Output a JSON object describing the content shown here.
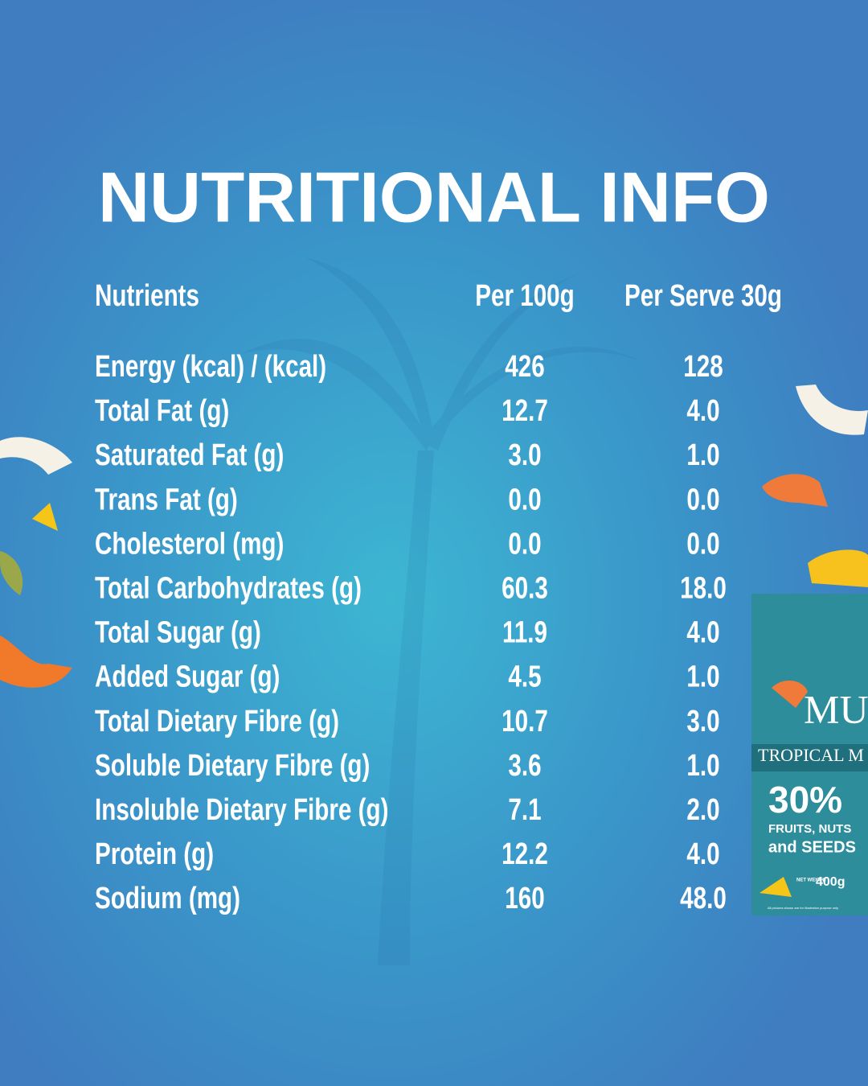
{
  "title": "NUTRITIONAL INFO",
  "table": {
    "header": [
      "Nutrients",
      "Per 100g",
      "Per Serve 30g"
    ],
    "rows": [
      [
        "Energy (kcal) / (kcal)",
        "426",
        "128"
      ],
      [
        "Total Fat (g)",
        "12.7",
        "4.0"
      ],
      [
        "Saturated Fat (g)",
        "3.0",
        "1.0"
      ],
      [
        "Trans Fat (g)",
        "0.0",
        "0.0"
      ],
      [
        "Cholesterol (mg)",
        "0.0",
        "0.0"
      ],
      [
        "Total Carbohydrates (g)",
        "60.3",
        "18.0"
      ],
      [
        "Total Sugar (g)",
        "11.9",
        "4.0"
      ],
      [
        "Added Sugar (g)",
        "4.5",
        "1.0"
      ],
      [
        "Total Dietary Fibre (g)",
        "10.7",
        "3.0"
      ],
      [
        "Soluble Dietary Fibre (g)",
        "3.6",
        "1.0"
      ],
      [
        "Insoluble Dietary Fibre (g)",
        "7.1",
        "2.0"
      ],
      [
        "Protein (g)",
        "12.2",
        "4.0"
      ],
      [
        "Sodium (mg)",
        "160",
        "48.0"
      ]
    ]
  },
  "package": {
    "brand": "MU",
    "variant": "TROPICAL M",
    "percent": "30%",
    "line1": "FRUITS, NUTS",
    "line2": "and SEEDS",
    "net": "NET WEIGHT",
    "weight": "400g",
    "note": "All pictures shown are for illustration purpose only"
  }
}
